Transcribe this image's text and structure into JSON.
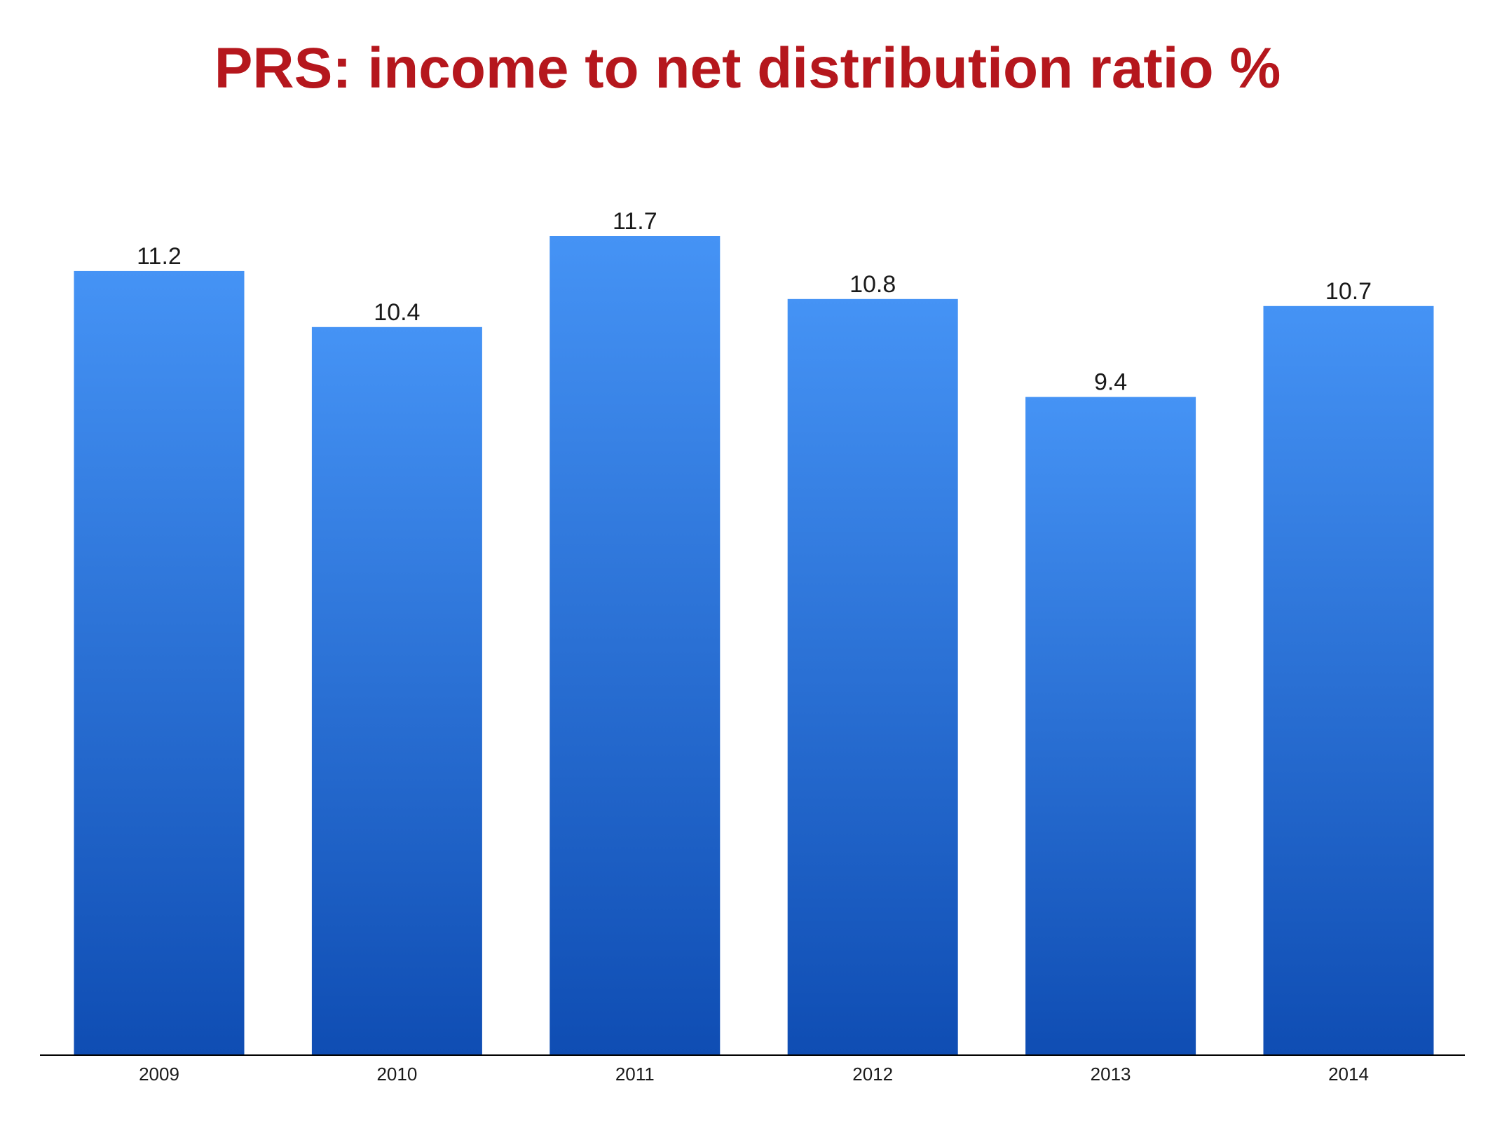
{
  "title": "PRS: income to net distribution ratio %",
  "colors": {
    "title": "#b5171d",
    "bar_top": "#4593f5",
    "bar_bottom": "#0f4db3",
    "axis": "#000000"
  },
  "chart_data": {
    "type": "bar",
    "title": "PRS: income to net distribution ratio %",
    "xlabel": "",
    "ylabel": "",
    "categories": [
      "2009",
      "2010",
      "2011",
      "2012",
      "2013",
      "2014"
    ],
    "values": [
      11.2,
      10.4,
      11.7,
      10.8,
      9.4,
      10.7
    ],
    "data_labels": [
      "11.2",
      "10.4",
      "11.7",
      "10.8",
      "9.4",
      "10.7"
    ],
    "ylim": [
      0,
      14
    ],
    "grid": false,
    "legend": "none"
  }
}
